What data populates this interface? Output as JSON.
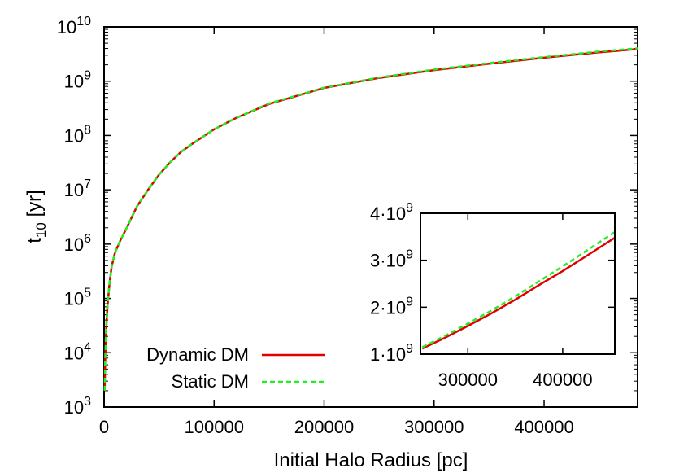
{
  "chart_data": [
    {
      "type": "line",
      "xlabel": "Initial Halo Radius [pc]",
      "ylabel_base": "t",
      "ylabel_sub": "10",
      "ylabel_unit": " [yr]",
      "xlim": [
        0,
        485000
      ],
      "ylim": [
        1000,
        10000000000
      ],
      "yscale": "log",
      "x_ticks": [
        "0",
        "100000",
        "200000",
        "300000",
        "400000"
      ],
      "y_tick_exponents": [
        "3",
        "4",
        "5",
        "6",
        "7",
        "8",
        "9",
        "10"
      ],
      "legend_position": "bottom-left",
      "series": [
        {
          "name": "Dynamic DM",
          "color": "#e00000",
          "dash": "solid",
          "x": [
            500,
            1000,
            2000,
            3000,
            5000,
            7000,
            10000,
            15000,
            20000,
            30000,
            40000,
            50000,
            60000,
            70000,
            80000,
            100000,
            120000,
            150000,
            200000,
            250000,
            300000,
            350000,
            400000,
            450000,
            485000
          ],
          "y": [
            2000,
            8000,
            30000,
            70000,
            200000,
            400000,
            700000,
            1200000,
            1900000,
            5000000,
            10000000,
            19000000,
            32000000,
            50000000,
            70000000,
            130000000,
            210000000,
            380000000,
            750000000,
            1150000000,
            1600000000,
            2100000000,
            2700000000,
            3400000000,
            3900000000
          ]
        },
        {
          "name": "Static DM",
          "color": "#22ee22",
          "dash": "dashed",
          "x": [
            500,
            1000,
            2000,
            3000,
            5000,
            7000,
            10000,
            15000,
            20000,
            30000,
            40000,
            50000,
            60000,
            70000,
            80000,
            100000,
            120000,
            150000,
            200000,
            250000,
            300000,
            350000,
            400000,
            450000,
            485000
          ],
          "y": [
            2000,
            8000,
            30000,
            70000,
            200000,
            400000,
            700000,
            1200000,
            1900000,
            5000000,
            10000000,
            19000000,
            32000000,
            50000000,
            70000000,
            130000000,
            210000000,
            390000000,
            760000000,
            1170000000,
            1640000000,
            2150000000,
            2780000000,
            3520000000,
            4020000000
          ]
        }
      ]
    },
    {
      "type": "line",
      "inset": true,
      "xlim": [
        250000,
        455000
      ],
      "ylim": [
        1000000000,
        4000000000
      ],
      "yscale": "linear",
      "x_ticks": [
        "300000",
        "400000"
      ],
      "y_tick_mantissas": [
        "1",
        "2",
        "3",
        "4"
      ],
      "y_tick_exponent": "9",
      "series": [
        {
          "name": "Dynamic DM",
          "color": "#e00000",
          "dash": "solid",
          "x": [
            252000,
            275000,
            300000,
            325000,
            350000,
            375000,
            400000,
            425000,
            455000
          ],
          "y": [
            1120000000,
            1340000000,
            1600000000,
            1870000000,
            2160000000,
            2470000000,
            2770000000,
            3090000000,
            3480000000
          ]
        },
        {
          "name": "Static DM",
          "color": "#22ee22",
          "dash": "dashed",
          "x": [
            252000,
            275000,
            300000,
            325000,
            350000,
            375000,
            400000,
            425000,
            455000
          ],
          "y": [
            1150000000,
            1380000000,
            1650000000,
            1930000000,
            2230000000,
            2550000000,
            2870000000,
            3200000000,
            3600000000
          ]
        }
      ]
    }
  ]
}
